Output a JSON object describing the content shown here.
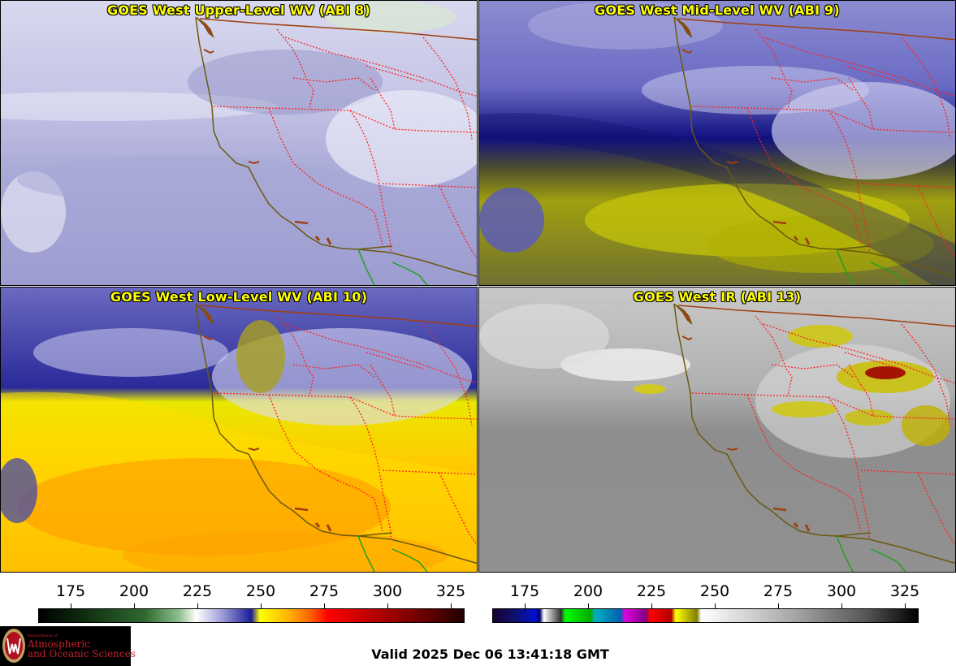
{
  "panels": {
    "upper": {
      "title": "GOES West Upper-Level WV (ABI 8)"
    },
    "mid": {
      "title": "GOES West Mid-Level WV (ABI 9)"
    },
    "low": {
      "title": "GOES West Low-Level WV (ABI 10)"
    },
    "ir": {
      "title": "GOES West IR (ABI 13)"
    }
  },
  "colorbars": {
    "ticks": [
      "175",
      "200",
      "225",
      "250",
      "275",
      "300",
      "325"
    ],
    "wv": {
      "palette": "water-vapor"
    },
    "ir": {
      "palette": "infrared"
    }
  },
  "logo": {
    "dept_small": "Department of",
    "line1": "Atmospheric",
    "line2": "and Oceanic Sciences"
  },
  "footer": {
    "valid": "Valid 2025 Dec 06 13:41:18 GMT"
  },
  "colors": {
    "title_text": "#ffff00",
    "state_borders": "#ff2020",
    "coastline": "#6b5a10",
    "mexico_border": "#20a020",
    "logo_red": "#cc1f2f"
  }
}
